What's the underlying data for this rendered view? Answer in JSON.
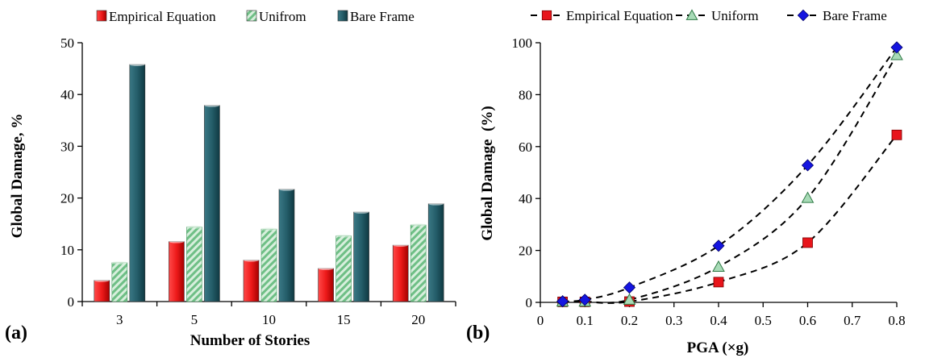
{
  "chart_data": [
    {
      "type": "bar",
      "panel_label": "(a)",
      "categories": [
        "3",
        "5",
        "10",
        "15",
        "20"
      ],
      "series": [
        {
          "name": "Empirical Equation",
          "values": [
            4.1,
            11.6,
            8.0,
            6.4,
            10.9
          ],
          "color": "#e8151b"
        },
        {
          "name": "Unifrom",
          "values": [
            7.5,
            14.4,
            14.0,
            12.7,
            14.8
          ],
          "color": "#a8dbb7"
        },
        {
          "name": "Bare Frame",
          "values": [
            45.8,
            37.9,
            21.7,
            17.3,
            18.9
          ],
          "color": "#225a66"
        }
      ],
      "xlabel": "Number of Stories",
      "ylabel": "Global Damage, %",
      "ylim": [
        0,
        50
      ],
      "yticks": [
        "0",
        "10",
        "20",
        "30",
        "40",
        "50"
      ],
      "grid": false,
      "legend_position": "top"
    },
    {
      "type": "line",
      "panel_label": "(b)",
      "x": [
        0.05,
        0.1,
        0.2,
        0.4,
        0.6,
        0.8
      ],
      "series": [
        {
          "name": "Empirical Equation",
          "values": [
            0.2,
            0.2,
            0.3,
            7.8,
            23.0,
            64.5
          ],
          "color": "#e8151b",
          "marker": "square"
        },
        {
          "name": "Uniform",
          "values": [
            0.3,
            0.3,
            1.0,
            13.7,
            40.2,
            95.2
          ],
          "color": "#a8dbb7",
          "marker": "triangle"
        },
        {
          "name": "Bare Frame",
          "values": [
            0.4,
            1.0,
            5.7,
            21.8,
            52.8,
            98.2
          ],
          "color": "#1515e0",
          "marker": "diamond"
        }
      ],
      "xlabel": "PGA (×g)",
      "ylabel": "Global Damage  (%)",
      "xlim": [
        0,
        0.8
      ],
      "ylim": [
        0,
        100
      ],
      "xticks": [
        "0",
        "0.1",
        "0.2",
        "0.3",
        "0.4",
        "0.5",
        "0.6",
        "0.7",
        "0.8"
      ],
      "yticks": [
        "0",
        "20",
        "40",
        "60",
        "80",
        "100"
      ],
      "line_style": "dashed",
      "grid": false,
      "legend_position": "top"
    }
  ]
}
